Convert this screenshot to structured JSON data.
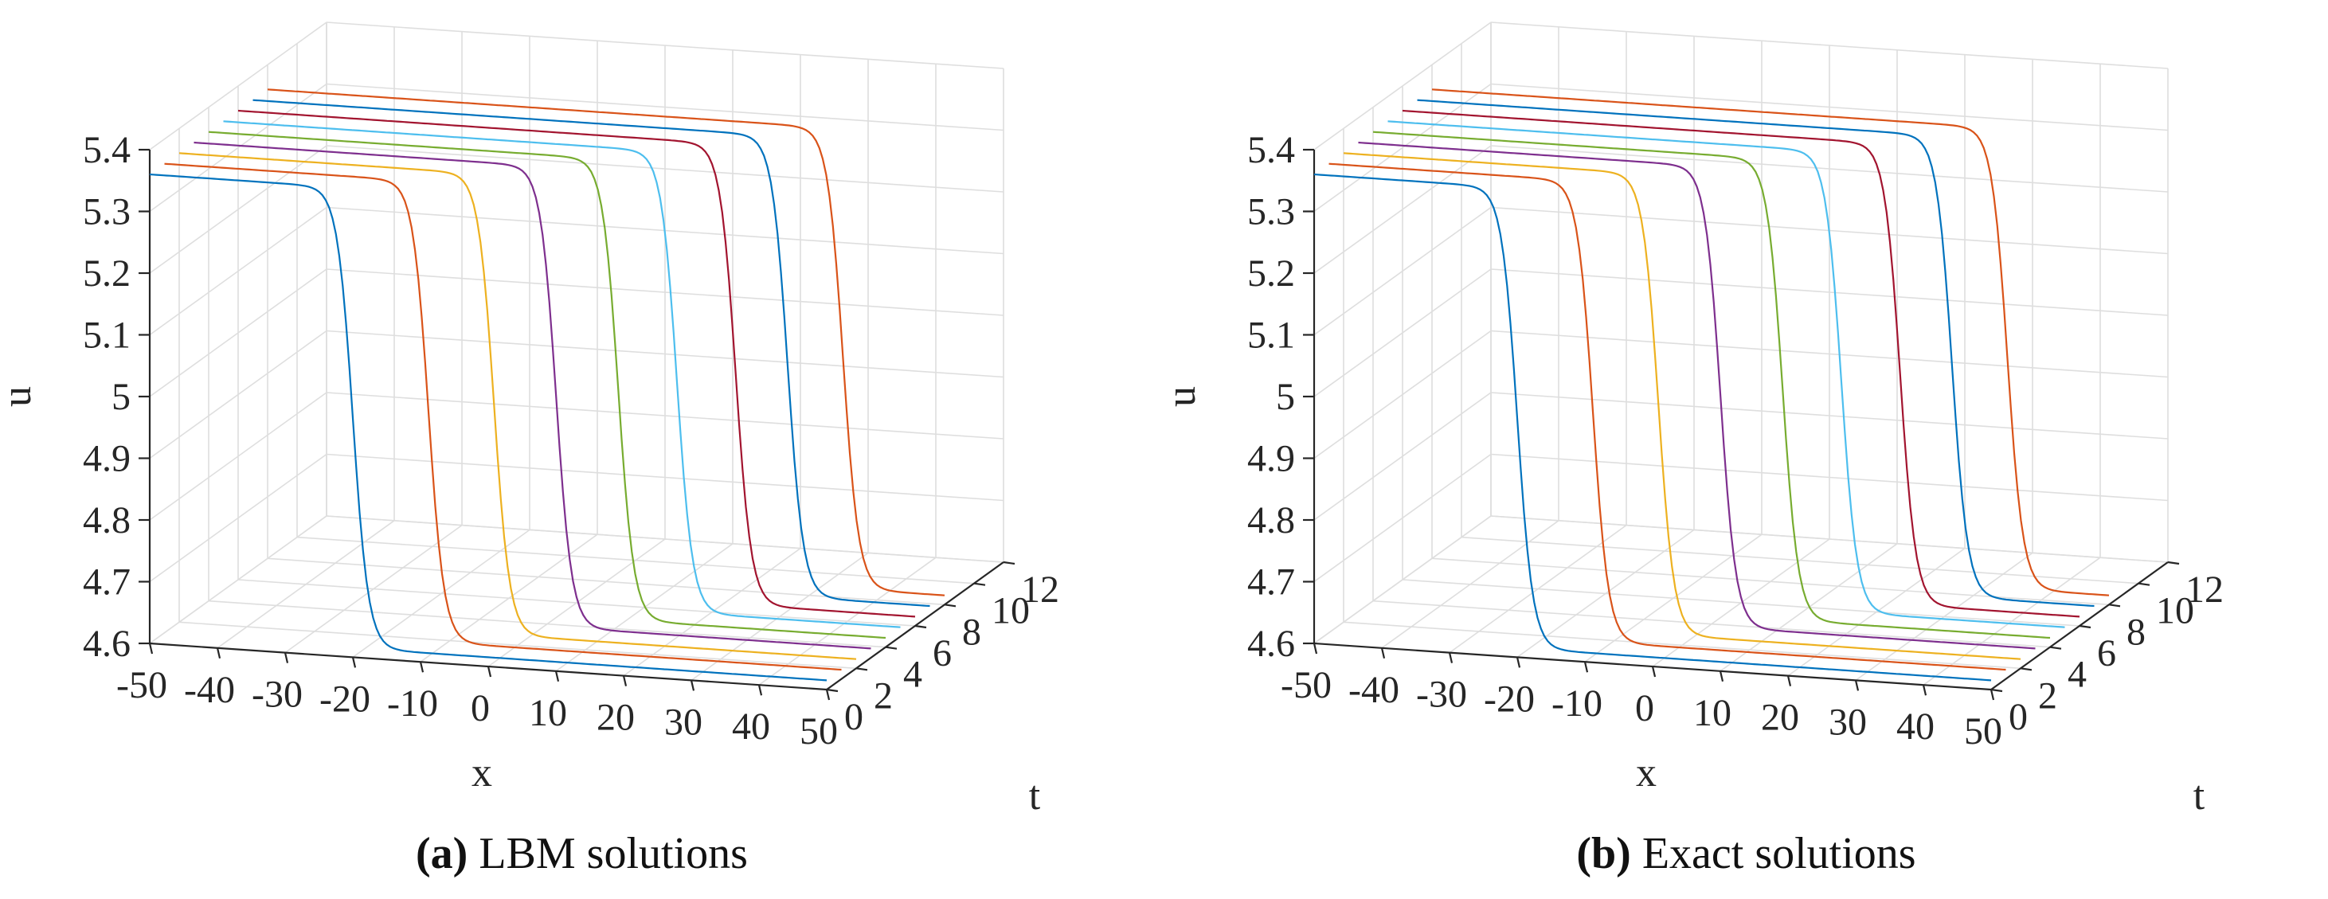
{
  "chart_data": [
    {
      "type": "line",
      "subtype": "3d-waterfall",
      "title": "",
      "caption_label": "(a)",
      "caption_text": "LBM solutions",
      "xlabel": "x",
      "ylabel": "t",
      "zlabel": "u",
      "xlim": [
        -50,
        50
      ],
      "ylim": [
        0,
        12
      ],
      "zlim": [
        4.6,
        5.4
      ],
      "x_ticks": [
        "-50",
        "-40",
        "-30",
        "-20",
        "-10",
        "0",
        "10",
        "20",
        "30",
        "40",
        "50"
      ],
      "t_ticks": [
        "0",
        "2",
        "4",
        "6",
        "8",
        "10",
        "12"
      ],
      "u_ticks": [
        "4.6",
        "4.7",
        "4.8",
        "4.9",
        "5",
        "5.1",
        "5.2",
        "5.3",
        "5.4"
      ],
      "grid": true,
      "profile": {
        "u_left": 5.36,
        "u_right": 4.615,
        "width": 2.3
      },
      "series": [
        {
          "name": "t=0",
          "t": 0,
          "center": -20.0,
          "color": "#0072BD"
        },
        {
          "name": "t=1",
          "t": 1,
          "center": -11.0,
          "color": "#D95319"
        },
        {
          "name": "t=2",
          "t": 2,
          "center": -3.5,
          "color": "#EDB120"
        },
        {
          "name": "t=3",
          "t": 3,
          "center": 3.5,
          "color": "#7E2F8E"
        },
        {
          "name": "t=4",
          "t": 4,
          "center": 10.5,
          "color": "#77AC30"
        },
        {
          "name": "t=5",
          "t": 5,
          "center": 17.0,
          "color": "#4DBEEE"
        },
        {
          "name": "t=6",
          "t": 6,
          "center": 23.5,
          "color": "#A2142F"
        },
        {
          "name": "t=7",
          "t": 7,
          "center": 29.0,
          "color": "#0072BD"
        },
        {
          "name": "t=8",
          "t": 8,
          "center": 35.0,
          "color": "#D95319"
        }
      ]
    },
    {
      "type": "line",
      "subtype": "3d-waterfall",
      "title": "",
      "caption_label": "(b)",
      "caption_text": "Exact solutions",
      "xlabel": "x",
      "ylabel": "t",
      "zlabel": "u",
      "xlim": [
        -50,
        50
      ],
      "ylim": [
        0,
        12
      ],
      "zlim": [
        4.6,
        5.4
      ],
      "x_ticks": [
        "-50",
        "-40",
        "-30",
        "-20",
        "-10",
        "0",
        "10",
        "20",
        "30",
        "40",
        "50"
      ],
      "t_ticks": [
        "0",
        "2",
        "4",
        "6",
        "8",
        "10",
        "12"
      ],
      "u_ticks": [
        "4.6",
        "4.7",
        "4.8",
        "4.9",
        "5",
        "5.1",
        "5.2",
        "5.3",
        "5.4"
      ],
      "grid": true,
      "profile": {
        "u_left": 5.36,
        "u_right": 4.615,
        "width": 2.3
      },
      "series": [
        {
          "name": "t=0",
          "t": 0,
          "center": -20.0,
          "color": "#0072BD"
        },
        {
          "name": "t=1",
          "t": 1,
          "center": -11.0,
          "color": "#D95319"
        },
        {
          "name": "t=2",
          "t": 2,
          "center": -3.5,
          "color": "#EDB120"
        },
        {
          "name": "t=3",
          "t": 3,
          "center": 3.5,
          "color": "#7E2F8E"
        },
        {
          "name": "t=4",
          "t": 4,
          "center": 10.5,
          "color": "#77AC30"
        },
        {
          "name": "t=5",
          "t": 5,
          "center": 17.0,
          "color": "#4DBEEE"
        },
        {
          "name": "t=6",
          "t": 6,
          "center": 23.5,
          "color": "#A2142F"
        },
        {
          "name": "t=7",
          "t": 7,
          "center": 29.0,
          "color": "#0072BD"
        },
        {
          "name": "t=8",
          "t": 8,
          "center": 35.0,
          "color": "#D95319"
        }
      ]
    }
  ],
  "colors": {
    "axis": "#262626",
    "grid": "#dedede"
  }
}
